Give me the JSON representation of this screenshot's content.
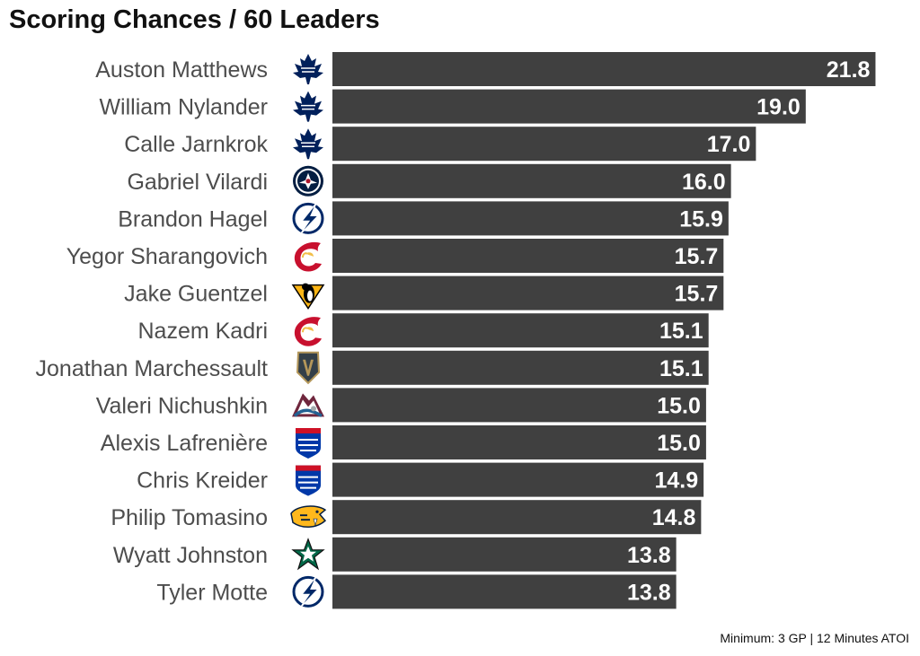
{
  "chart_data": {
    "type": "bar",
    "orientation": "horizontal",
    "title": "Scoring Chances / 60 Leaders",
    "caption": "Minimum: 3 GP | 12 Minutes ATOI",
    "bar_color": "#404040",
    "value_label_color": "#ffffff",
    "xlim": [
      0,
      22
    ],
    "categories": [
      "Auston Matthews",
      "William Nylander",
      "Calle Jarnkrok",
      "Gabriel Vilardi",
      "Brandon Hagel",
      "Yegor Sharangovich",
      "Jake Guentzel",
      "Nazem Kadri",
      "Jonathan Marchessault",
      "Valeri Nichushkin",
      "Alexis Lafrenière",
      "Chris Kreider",
      "Philip Tomasino",
      "Wyatt Johnston",
      "Tyler Motte"
    ],
    "values": [
      21.8,
      19.0,
      17.0,
      16.0,
      15.9,
      15.7,
      15.7,
      15.1,
      15.1,
      15.0,
      15.0,
      14.9,
      14.8,
      13.8,
      13.8
    ],
    "value_labels": [
      "21.8",
      "19.0",
      "17.0",
      "16.0",
      "15.9",
      "15.7",
      "15.7",
      "15.1",
      "15.1",
      "15.0",
      "15.0",
      "14.9",
      "14.8",
      "13.8",
      "13.8"
    ],
    "team_logos": [
      "maple-leafs-logo-icon",
      "maple-leafs-logo-icon",
      "maple-leafs-logo-icon",
      "jets-logo-icon",
      "lightning-logo-icon",
      "flames-logo-icon",
      "penguins-logo-icon",
      "flames-logo-icon",
      "golden-knights-logo-icon",
      "avalanche-logo-icon",
      "rangers-logo-icon",
      "rangers-logo-icon",
      "predators-logo-icon",
      "stars-logo-icon",
      "lightning-logo-icon"
    ],
    "grid": false,
    "legend": "none",
    "xlabel": "",
    "ylabel": ""
  }
}
